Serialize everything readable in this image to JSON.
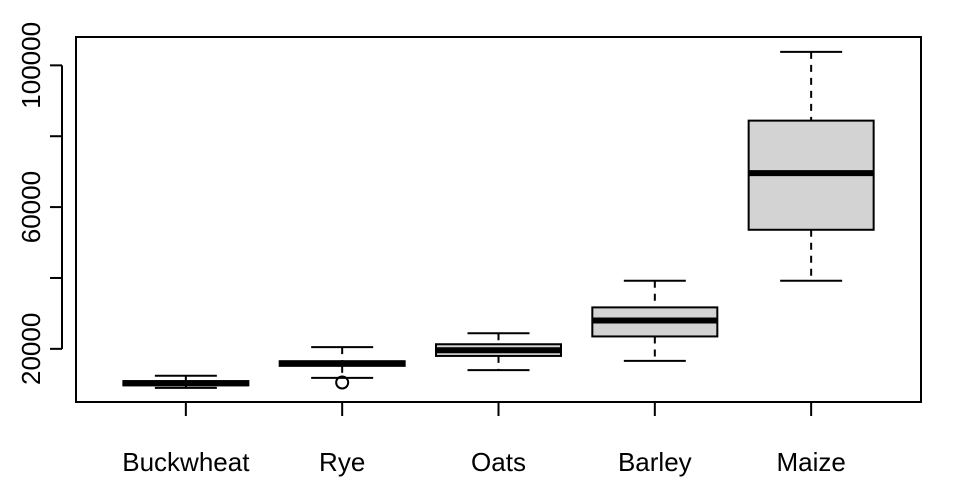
{
  "chart_data": {
    "type": "boxplot",
    "title": "",
    "xlabel": "",
    "ylabel": "",
    "ylim": [
      5000,
      108000
    ],
    "y_ticks": [
      20000,
      60000,
      100000
    ],
    "y_tick_labels": [
      "20000",
      "60000",
      "100000"
    ],
    "box_fill": "#d3d3d3",
    "categories": [
      "Buckwheat",
      "Rye",
      "Oats",
      "Barley",
      "Maize"
    ],
    "boxes": [
      {
        "name": "Buckwheat",
        "whisker_low": 9000,
        "q1": 9700,
        "median": 10300,
        "q3": 10900,
        "whisker_high": 12400,
        "outliers": []
      },
      {
        "name": "Rye",
        "whisker_low": 11800,
        "q1": 15200,
        "median": 15900,
        "q3": 16500,
        "whisker_high": 20500,
        "outliers": [
          10500
        ]
      },
      {
        "name": "Oats",
        "whisker_low": 14000,
        "q1": 18000,
        "median": 19600,
        "q3": 21300,
        "whisker_high": 24400,
        "outliers": []
      },
      {
        "name": "Barley",
        "whisker_low": 16600,
        "q1": 23500,
        "median": 28000,
        "q3": 31700,
        "whisker_high": 39200,
        "outliers": []
      },
      {
        "name": "Maize",
        "whisker_low": 39200,
        "q1": 53600,
        "median": 69600,
        "q3": 84400,
        "whisker_high": 103800,
        "outliers": []
      }
    ]
  }
}
